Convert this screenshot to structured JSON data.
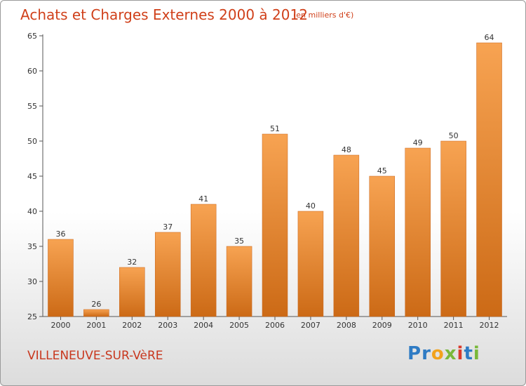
{
  "header": {
    "title": "Achats et Charges Externes 2000 à 2012",
    "unit": "(en milliers d'€)"
  },
  "footer": {
    "place": "VILLENEUVE-SUR-VèRE",
    "logo": [
      "P",
      "r",
      "o",
      "x",
      "i",
      "t",
      "i"
    ]
  },
  "colors": {
    "bar_top": "#f7a352",
    "bar_bottom": "#cc6a16",
    "title": "#d0401a",
    "logo": [
      "#2e7bc4",
      "#2e7bc4",
      "#f2a21c",
      "#79b83a",
      "#d93a2b",
      "#2e7bc4",
      "#79b83a"
    ]
  },
  "chart_data": {
    "type": "bar",
    "categories": [
      "2000",
      "2001",
      "2002",
      "2003",
      "2004",
      "2005",
      "2006",
      "2007",
      "2008",
      "2009",
      "2010",
      "2011",
      "2012"
    ],
    "values": [
      36,
      26,
      32,
      37,
      41,
      35,
      51,
      40,
      48,
      45,
      49,
      50,
      64
    ],
    "ylim": [
      25,
      65
    ],
    "yticks": [
      25,
      30,
      35,
      40,
      45,
      50,
      55,
      60,
      65
    ],
    "grid": false,
    "data_labels": true
  }
}
